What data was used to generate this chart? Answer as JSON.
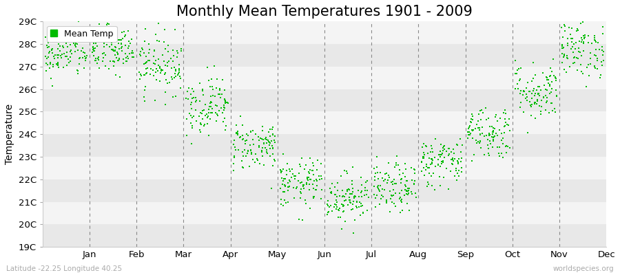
{
  "title": "Monthly Mean Temperatures 1901 - 2009",
  "ylabel": "Temperature",
  "bottom_left": "Latitude -22.25 Longitude 40.25",
  "bottom_right": "worldspecies.org",
  "legend_label": "Mean Temp",
  "months": [
    "Jan",
    "Feb",
    "Mar",
    "Apr",
    "May",
    "Jun",
    "Jul",
    "Aug",
    "Sep",
    "Oct",
    "Nov",
    "Dec"
  ],
  "month_means": [
    27.6,
    27.7,
    27.1,
    25.3,
    23.5,
    21.8,
    21.2,
    21.6,
    22.8,
    24.1,
    25.9,
    27.8
  ],
  "month_stds": [
    0.55,
    0.55,
    0.65,
    0.65,
    0.55,
    0.55,
    0.55,
    0.55,
    0.55,
    0.6,
    0.65,
    0.65
  ],
  "n_years": 109,
  "ylim_min": 19,
  "ylim_max": 29,
  "yticks": [
    19,
    20,
    21,
    22,
    23,
    24,
    25,
    26,
    27,
    28,
    29
  ],
  "dot_color": "#00bb00",
  "dot_size": 3,
  "bg_band_color1": "#e8e8e8",
  "bg_band_color2": "#f4f4f4",
  "title_fontsize": 15,
  "axis_fontsize": 10,
  "tick_fontsize": 9.5,
  "legend_fontsize": 9,
  "seed": 42
}
